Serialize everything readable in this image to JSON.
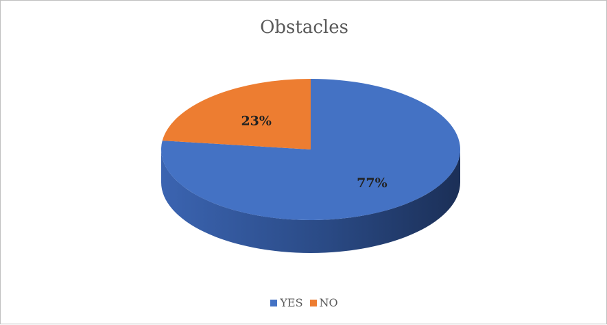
{
  "chart_data": {
    "type": "pie",
    "title": "Obstacles",
    "labels": [
      "YES",
      "NO"
    ],
    "values": [
      77,
      23
    ],
    "value_labels": [
      "77%",
      "23%"
    ],
    "colors": [
      "#4472C4",
      "#ED7D31"
    ],
    "side_colors": [
      "#2F5597",
      "#C55A11"
    ],
    "style": "3d",
    "legend_position": "bottom"
  }
}
